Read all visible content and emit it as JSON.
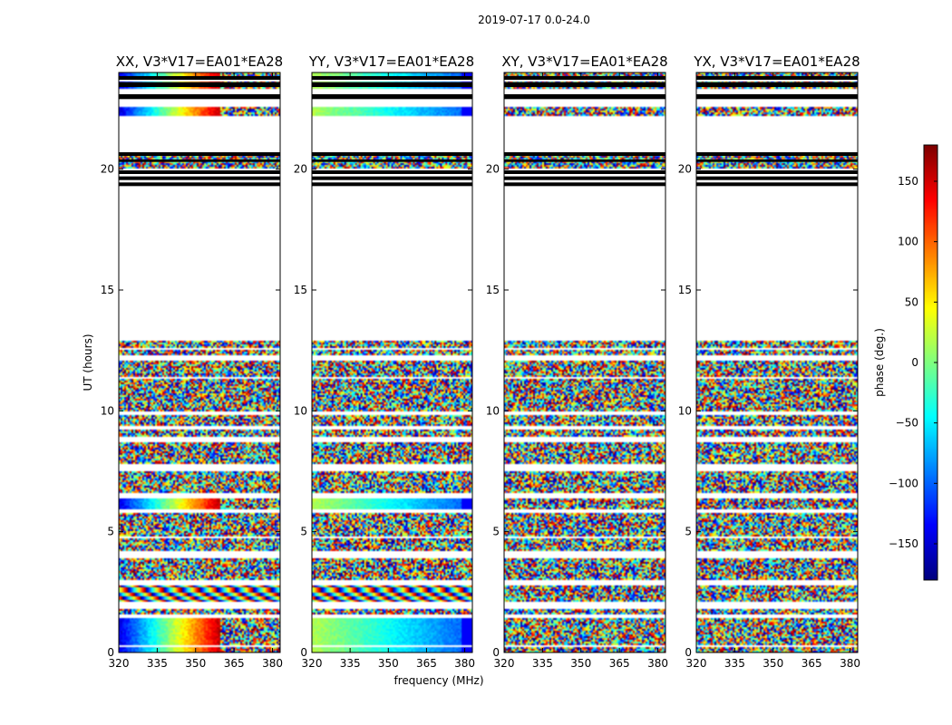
{
  "figure": {
    "suptitle": "2019-07-17 0.0-24.0"
  },
  "chart_data": {
    "type": "heatmap",
    "xlabel": "frequency (MHz)",
    "ylabel": "UT (hours)",
    "xlim": [
      320,
      383
    ],
    "ylim": [
      0,
      24
    ],
    "xticks": [
      "320",
      "335",
      "350",
      "365",
      "380"
    ],
    "yticks": [
      "0",
      "5",
      "10",
      "15",
      "20"
    ],
    "panels": [
      {
        "name": "XX",
        "title": "XX, V3*V17=EA01*EA28",
        "pattern": "phase-ramp"
      },
      {
        "name": "YY",
        "title": "YY, V3*V17=EA01*EA28",
        "pattern": "smooth"
      },
      {
        "name": "XY",
        "title": "XY, V3*V17=EA01*EA28",
        "pattern": "noise"
      },
      {
        "name": "YX",
        "title": "YX, V3*V17=EA01*EA28",
        "pattern": "noise"
      }
    ],
    "data_segments_hours": [
      [
        0.0,
        0.2
      ],
      [
        0.3,
        1.4
      ],
      [
        1.6,
        1.8
      ],
      [
        2.1,
        2.8
      ],
      [
        3.0,
        3.9
      ],
      [
        4.2,
        4.7
      ],
      [
        4.8,
        5.8
      ],
      [
        5.9,
        6.4
      ],
      [
        6.6,
        7.5
      ],
      [
        7.8,
        8.7
      ],
      [
        8.9,
        9.2
      ],
      [
        9.4,
        9.8
      ],
      [
        10.0,
        11.3
      ],
      [
        11.4,
        12.1
      ],
      [
        12.3,
        12.5
      ],
      [
        12.6,
        12.9
      ],
      [
        20.0,
        20.6
      ],
      [
        22.2,
        22.6
      ],
      [
        23.3,
        23.6
      ],
      [
        23.8,
        24.0
      ]
    ],
    "black_bands_hours": [
      [
        19.3,
        19.45
      ],
      [
        19.55,
        19.7
      ],
      [
        19.8,
        19.95
      ],
      [
        20.3,
        20.4
      ],
      [
        20.55,
        20.7
      ],
      [
        22.9,
        23.1
      ],
      [
        23.4,
        23.6
      ],
      [
        23.7,
        23.85
      ]
    ],
    "colorbar": {
      "label": "phase (deg.)",
      "range": [
        -180,
        180
      ],
      "ticks": [
        "150",
        "100",
        "50",
        "0",
        "−50",
        "−100",
        "−150"
      ],
      "tick_values": [
        150,
        100,
        50,
        0,
        -50,
        -100,
        -150
      ],
      "colormap": "jet"
    }
  }
}
